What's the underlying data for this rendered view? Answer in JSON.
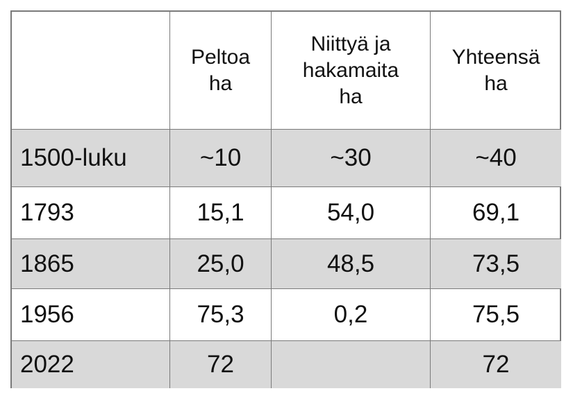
{
  "table": {
    "header": [
      null,
      [
        "Peltoa",
        "ha"
      ],
      [
        "Niittyä ja",
        "hakamaita",
        "ha"
      ],
      [
        "Yhteensä",
        "ha"
      ]
    ],
    "rows": [
      [
        "1500-luku",
        "~10",
        "~30",
        "~40"
      ],
      [
        "1793",
        "15,1",
        "54,0",
        "69,1"
      ],
      [
        "1865",
        "25,0",
        "48,5",
        "73,5"
      ],
      [
        "1956",
        "75,3",
        "0,2",
        "75,5"
      ],
      [
        "2022",
        "72",
        null,
        "72"
      ]
    ]
  }
}
